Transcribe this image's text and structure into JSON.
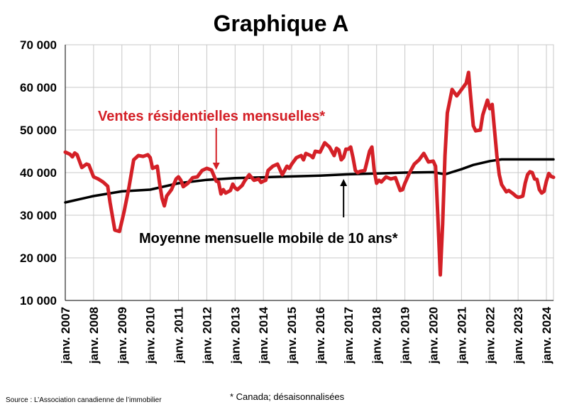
{
  "chart_data": {
    "type": "line",
    "title": "Graphique A",
    "xlabel": "",
    "ylabel": "",
    "ylim": [
      10000,
      70000
    ],
    "yticks": [
      10000,
      20000,
      30000,
      40000,
      50000,
      60000,
      70000
    ],
    "ytick_labels": [
      "10 000",
      "20 000",
      "30 000",
      "40 000",
      "50 000",
      "60 000",
      "70 000"
    ],
    "xlim": [
      "2007-01",
      "2024-04"
    ],
    "xticks": [
      "2007-01",
      "2008-01",
      "2009-01",
      "2010-01",
      "2011-01",
      "2012-01",
      "2013-01",
      "2014-01",
      "2015-01",
      "2016-01",
      "2017-01",
      "2018-01",
      "2019-01",
      "2020-01",
      "2021-01",
      "2022-01",
      "2023-01",
      "2024-01"
    ],
    "xtick_labels": [
      "janv. 2007",
      "janv. 2008",
      "janv. 2009",
      "janv. 2010",
      "janv. 2011",
      "janv. 2012",
      "janv. 2013",
      "janv. 2014",
      "janv. 2015",
      "janv. 2016",
      "janv. 2017",
      "janv. 2018",
      "janv. 2019",
      "janv. 2020",
      "janv. 2021",
      "janv. 2022",
      "janv. 2023",
      "janv. 2024"
    ],
    "grid": true,
    "series": [
      {
        "name": "Ventes résidentielles mensuelles*",
        "color": "#d42027",
        "points": [
          [
            "2007-01",
            44800
          ],
          [
            "2007-03",
            44300
          ],
          [
            "2007-04",
            43700
          ],
          [
            "2007-05",
            44600
          ],
          [
            "2007-06",
            44200
          ],
          [
            "2007-08",
            41200
          ],
          [
            "2007-10",
            42000
          ],
          [
            "2007-11",
            41800
          ],
          [
            "2008-01",
            39000
          ],
          [
            "2008-03",
            38500
          ],
          [
            "2008-05",
            37800
          ],
          [
            "2008-07",
            36800
          ],
          [
            "2008-08",
            33000
          ],
          [
            "2008-10",
            26500
          ],
          [
            "2008-12",
            26200
          ],
          [
            "2009-02",
            31000
          ],
          [
            "2009-04",
            36500
          ],
          [
            "2009-06",
            43000
          ],
          [
            "2009-08",
            44000
          ],
          [
            "2009-10",
            43800
          ],
          [
            "2009-12",
            44200
          ],
          [
            "2010-01",
            43500
          ],
          [
            "2010-02",
            41000
          ],
          [
            "2010-04",
            41500
          ],
          [
            "2010-05",
            37500
          ],
          [
            "2010-06",
            34000
          ],
          [
            "2010-07",
            32200
          ],
          [
            "2010-08",
            34500
          ],
          [
            "2010-10",
            36000
          ],
          [
            "2010-12",
            38500
          ],
          [
            "2011-01",
            39000
          ],
          [
            "2011-02",
            38200
          ],
          [
            "2011-03",
            36700
          ],
          [
            "2011-05",
            37500
          ],
          [
            "2011-07",
            38800
          ],
          [
            "2011-09",
            39000
          ],
          [
            "2011-11",
            40500
          ],
          [
            "2012-01",
            41000
          ],
          [
            "2012-03",
            40600
          ],
          [
            "2012-05",
            38000
          ],
          [
            "2012-06",
            37800
          ],
          [
            "2012-07",
            35000
          ],
          [
            "2012-08",
            36000
          ],
          [
            "2012-09",
            35200
          ],
          [
            "2012-11",
            35800
          ],
          [
            "2012-12",
            37300
          ],
          [
            "2013-01",
            36400
          ],
          [
            "2013-02",
            36000
          ],
          [
            "2013-04",
            37000
          ],
          [
            "2013-05",
            38000
          ],
          [
            "2013-07",
            39500
          ],
          [
            "2013-09",
            38200
          ],
          [
            "2013-11",
            38500
          ],
          [
            "2013-12",
            37700
          ],
          [
            "2014-01",
            38000
          ],
          [
            "2014-02",
            38200
          ],
          [
            "2014-03",
            40500
          ],
          [
            "2014-05",
            41500
          ],
          [
            "2014-07",
            42000
          ],
          [
            "2014-09",
            39500
          ],
          [
            "2014-11",
            41500
          ],
          [
            "2014-12",
            41000
          ],
          [
            "2015-01",
            42000
          ],
          [
            "2015-03",
            43500
          ],
          [
            "2015-05",
            44000
          ],
          [
            "2015-06",
            43000
          ],
          [
            "2015-07",
            44500
          ],
          [
            "2015-09",
            44000
          ],
          [
            "2015-10",
            43500
          ],
          [
            "2015-11",
            45000
          ],
          [
            "2016-01",
            44800
          ],
          [
            "2016-03",
            47000
          ],
          [
            "2016-05",
            46000
          ],
          [
            "2016-07",
            44000
          ],
          [
            "2016-08",
            45700
          ],
          [
            "2016-09",
            45300
          ],
          [
            "2016-10",
            43000
          ],
          [
            "2016-11",
            43600
          ],
          [
            "2016-12",
            45500
          ],
          [
            "2017-01",
            45500
          ],
          [
            "2017-02",
            46000
          ],
          [
            "2017-03",
            43500
          ],
          [
            "2017-04",
            40500
          ],
          [
            "2017-05",
            40000
          ],
          [
            "2017-06",
            40300
          ],
          [
            "2017-08",
            40500
          ],
          [
            "2017-10",
            45000
          ],
          [
            "2017-11",
            46000
          ],
          [
            "2017-12",
            40500
          ],
          [
            "2018-01",
            37500
          ],
          [
            "2018-02",
            38200
          ],
          [
            "2018-03",
            37800
          ],
          [
            "2018-05",
            39000
          ],
          [
            "2018-07",
            38500
          ],
          [
            "2018-09",
            38800
          ],
          [
            "2018-11",
            35800
          ],
          [
            "2018-12",
            36000
          ],
          [
            "2019-01",
            37500
          ],
          [
            "2019-03",
            40000
          ],
          [
            "2019-05",
            42000
          ],
          [
            "2019-07",
            43000
          ],
          [
            "2019-09",
            44500
          ],
          [
            "2019-11",
            42500
          ],
          [
            "2020-01",
            42700
          ],
          [
            "2020-02",
            41500
          ],
          [
            "2020-03",
            29500
          ],
          [
            "2020-04",
            16000
          ],
          [
            "2020-05",
            28000
          ],
          [
            "2020-06",
            44000
          ],
          [
            "2020-07",
            54000
          ],
          [
            "2020-09",
            59500
          ],
          [
            "2020-11",
            58000
          ],
          [
            "2021-01",
            59500
          ],
          [
            "2021-03",
            61000
          ],
          [
            "2021-04",
            63500
          ],
          [
            "2021-05",
            57000
          ],
          [
            "2021-06",
            51000
          ],
          [
            "2021-07",
            49800
          ],
          [
            "2021-09",
            50000
          ],
          [
            "2021-10",
            53500
          ],
          [
            "2021-12",
            57000
          ],
          [
            "2022-01",
            55000
          ],
          [
            "2022-02",
            56000
          ],
          [
            "2022-03",
            50000
          ],
          [
            "2022-04",
            44000
          ],
          [
            "2022-05",
            39500
          ],
          [
            "2022-06",
            37200
          ],
          [
            "2022-08",
            35500
          ],
          [
            "2022-09",
            35800
          ],
          [
            "2022-11",
            35000
          ],
          [
            "2022-12",
            34500
          ],
          [
            "2023-01",
            34200
          ],
          [
            "2023-02",
            34300
          ],
          [
            "2023-03",
            34500
          ],
          [
            "2023-04",
            37500
          ],
          [
            "2023-05",
            39500
          ],
          [
            "2023-06",
            40200
          ],
          [
            "2023-07",
            40000
          ],
          [
            "2023-08",
            38500
          ],
          [
            "2023-09",
            38400
          ],
          [
            "2023-10",
            36000
          ],
          [
            "2023-11",
            35200
          ],
          [
            "2023-12",
            35600
          ],
          [
            "2024-01",
            38000
          ],
          [
            "2024-02",
            39800
          ],
          [
            "2024-03",
            39100
          ],
          [
            "2024-04",
            38900
          ]
        ]
      },
      {
        "name": "Moyenne mensuelle mobile de 10 ans*",
        "color": "#000000",
        "points": [
          [
            "2007-01",
            33000
          ],
          [
            "2008-01",
            34500
          ],
          [
            "2009-01",
            35600
          ],
          [
            "2010-01",
            36000
          ],
          [
            "2011-01",
            37500
          ],
          [
            "2012-01",
            38300
          ],
          [
            "2013-01",
            38700
          ],
          [
            "2014-01",
            38900
          ],
          [
            "2015-01",
            39100
          ],
          [
            "2016-01",
            39300
          ],
          [
            "2017-01",
            39600
          ],
          [
            "2018-01",
            39800
          ],
          [
            "2019-01",
            40000
          ],
          [
            "2020-01",
            40100
          ],
          [
            "2020-06",
            39600
          ],
          [
            "2021-01",
            40800
          ],
          [
            "2021-06",
            41800
          ],
          [
            "2022-01",
            42700
          ],
          [
            "2022-06",
            43100
          ],
          [
            "2023-01",
            43100
          ],
          [
            "2024-04",
            43100
          ]
        ]
      }
    ],
    "annotations": [
      {
        "text": "Ventes résidentielles mensuelles*",
        "color": "#d42027",
        "arrow_to": [
          "2012-05",
          39000
        ]
      },
      {
        "text": "Moyenne mensuelle mobile de 10 ans*",
        "color": "#000000",
        "arrow_to": [
          "2016-11",
          39500
        ]
      }
    ],
    "footnote": "* Canada; désaisonnalisées",
    "source": "Source : L’Association canadienne de l’immobilier"
  }
}
